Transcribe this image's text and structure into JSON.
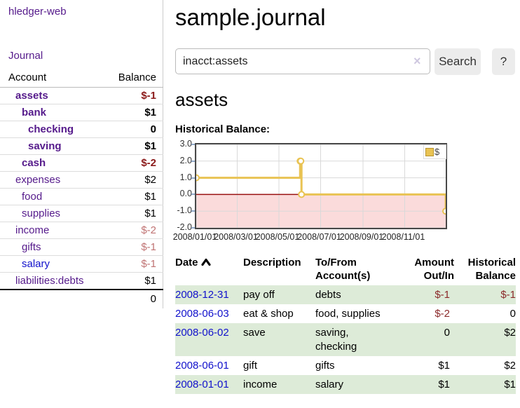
{
  "app_title": "hledger-web",
  "sidebar": {
    "journal_link": "Journal",
    "account_header": "Account",
    "balance_header": "Balance",
    "accounts": [
      {
        "name": "assets",
        "balance": "$-1"
      },
      {
        "name": "bank",
        "balance": "$1"
      },
      {
        "name": "checking",
        "balance": "0"
      },
      {
        "name": "saving",
        "balance": "$1"
      },
      {
        "name": "cash",
        "balance": "$-2"
      },
      {
        "name": "expenses",
        "balance": "$2"
      },
      {
        "name": "food",
        "balance": "$1"
      },
      {
        "name": "supplies",
        "balance": "$1"
      },
      {
        "name": "income",
        "balance": "$-2"
      },
      {
        "name": "gifts",
        "balance": "$-1"
      },
      {
        "name": "salary",
        "balance": "$-1"
      },
      {
        "name": "liabilities:debts",
        "balance": "$1"
      }
    ],
    "total": "0"
  },
  "main": {
    "title": "sample.journal",
    "search": {
      "value": "inacct:assets",
      "clear_icon": "×",
      "search_button": "Search",
      "help_button": "?"
    },
    "account_heading": "assets",
    "chart_title": "Historical Balance:"
  },
  "register": {
    "headers": {
      "date": "Date",
      "description": "Description",
      "tofrom": "To/From Account(s)",
      "amount": "Amount Out/In",
      "balance": "Historical Balance"
    },
    "rows": [
      {
        "date": "2008-12-31",
        "description": "pay off",
        "accounts": "debts",
        "amount": "$-1",
        "balance": "$-1"
      },
      {
        "date": "2008-06-03",
        "description": "eat & shop",
        "accounts": "food, supplies",
        "amount": "$-2",
        "balance": "0"
      },
      {
        "date": "2008-06-02",
        "description": "save",
        "accounts": "saving, checking",
        "amount": "0",
        "balance": "$2"
      },
      {
        "date": "2008-06-01",
        "description": "gift",
        "accounts": "gifts",
        "amount": "$1",
        "balance": "$2"
      },
      {
        "date": "2008-01-01",
        "description": "income",
        "accounts": "salary",
        "amount": "$1",
        "balance": "$1"
      }
    ]
  },
  "chart_data": {
    "type": "line",
    "title": "Historical Balance:",
    "series": [
      {
        "name": "$",
        "step": true,
        "points": [
          {
            "date": "2008-01-01",
            "value": 1
          },
          {
            "date": "2008-06-01",
            "value": 2
          },
          {
            "date": "2008-06-02",
            "value": 2
          },
          {
            "date": "2008-06-03",
            "value": 0
          },
          {
            "date": "2008-12-31",
            "value": -1
          }
        ]
      }
    ],
    "x_range": [
      "2008-01-01",
      "2008-12-31"
    ],
    "ylim": [
      -2.0,
      3.0
    ],
    "yticks": [
      "3.0",
      "2.0",
      "1.0",
      "0.0",
      "-1.0",
      "-2.0"
    ],
    "ytick_values": [
      3,
      2,
      1,
      0,
      -1,
      -2
    ],
    "xticks": [
      {
        "label": "2008/01/01",
        "date": "2008-01-01"
      },
      {
        "label": "2008/03/01",
        "date": "2008-03-01"
      },
      {
        "label": "2008/05/01",
        "date": "2008-05-01"
      },
      {
        "label": "2008/07/01",
        "date": "2008-07-01"
      },
      {
        "label": "2008/09/01",
        "date": "2008-09-01"
      },
      {
        "label": "2008/11/01",
        "date": "2008-11-01"
      }
    ],
    "legend": {
      "label": "$",
      "color": "#e9c353",
      "position": "top-right"
    },
    "grid": true,
    "colors": {
      "line": "#e9c353",
      "marker_fill": "#ffffff",
      "negative_fill": "#fbdbdb",
      "zero_line": "#991111",
      "grid": "#d9d9d9"
    }
  }
}
